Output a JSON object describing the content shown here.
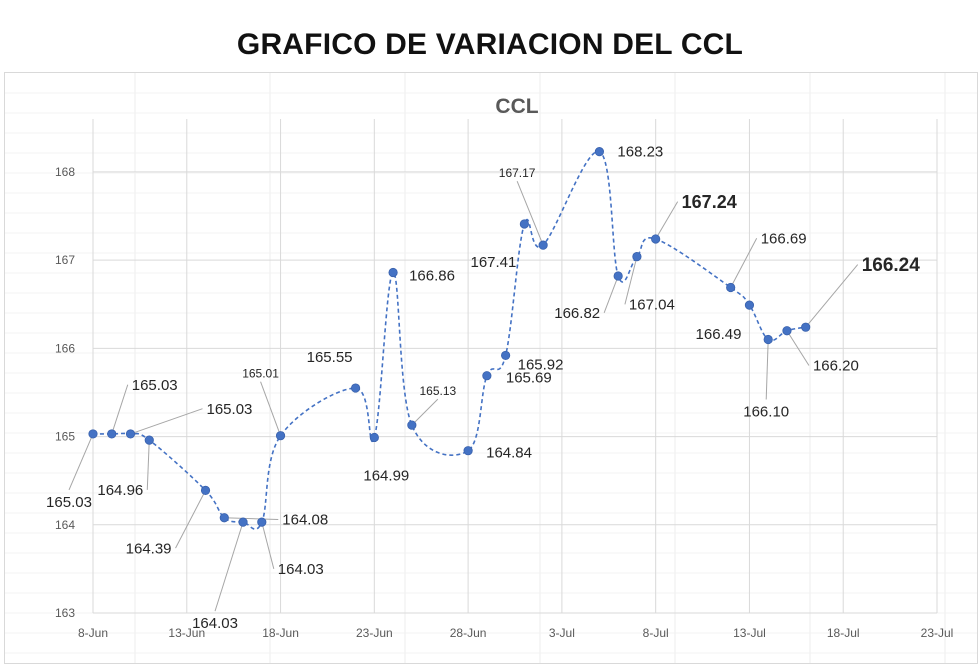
{
  "page_title": "GRAFICO DE VARIACION DEL CCL",
  "colors": {
    "series": "#4472c4",
    "grid": "#d9d9d9",
    "leader": "#a6a6a6",
    "text": "#262626",
    "title": "#595959"
  },
  "chart_data": {
    "type": "line",
    "title": "CCL",
    "xlabel": "",
    "ylabel": "",
    "line_style": "dashed-smooth",
    "marker": "circle",
    "grid": true,
    "legend": "none",
    "ylim": [
      163,
      168.6
    ],
    "yticks": [
      "163",
      "164",
      "165",
      "166",
      "167",
      "168"
    ],
    "xticks": [
      "8-Jun",
      "13-Jun",
      "18-Jun",
      "23-Jun",
      "28-Jun",
      "3-Jul",
      "8-Jul",
      "13-Jul",
      "18-Jul",
      "23-Jul"
    ],
    "xtick_dates": [
      "2020-06-08",
      "2020-06-13",
      "2020-06-18",
      "2020-06-23",
      "2020-06-28",
      "2020-07-03",
      "2020-07-08",
      "2020-07-13",
      "2020-07-18",
      "2020-07-23"
    ],
    "series": [
      {
        "points": [
          {
            "x": "2020-06-08",
            "y": 165.03,
            "label": "165.03"
          },
          {
            "x": "2020-06-09",
            "y": 165.03,
            "label": "165.03"
          },
          {
            "x": "2020-06-10",
            "y": 165.03,
            "label": "165.03"
          },
          {
            "x": "2020-06-11",
            "y": 164.96,
            "label": "164.96"
          },
          {
            "x": "2020-06-14",
            "y": 164.39,
            "label": "164.39"
          },
          {
            "x": "2020-06-15",
            "y": 164.08,
            "label": "164.08"
          },
          {
            "x": "2020-06-16",
            "y": 164.03,
            "label": "164.03"
          },
          {
            "x": "2020-06-17",
            "y": 164.03,
            "label": "164.03"
          },
          {
            "x": "2020-06-18",
            "y": 165.01,
            "label": "165.01"
          },
          {
            "x": "2020-06-22",
            "y": 165.55,
            "label": "165.55"
          },
          {
            "x": "2020-06-23",
            "y": 164.99,
            "label": "164.99"
          },
          {
            "x": "2020-06-24",
            "y": 166.86,
            "label": "166.86"
          },
          {
            "x": "2020-06-25",
            "y": 165.13,
            "label": "165.13"
          },
          {
            "x": "2020-06-28",
            "y": 164.84,
            "label": "164.84"
          },
          {
            "x": "2020-06-29",
            "y": 165.69,
            "label": "165.69"
          },
          {
            "x": "2020-06-30",
            "y": 165.92,
            "label": "165.92"
          },
          {
            "x": "2020-07-01",
            "y": 167.41,
            "label": "167.41"
          },
          {
            "x": "2020-07-02",
            "y": 167.17,
            "label": "167.17"
          },
          {
            "x": "2020-07-05",
            "y": 168.23,
            "label": "168.23"
          },
          {
            "x": "2020-07-06",
            "y": 166.82,
            "label": "166.82"
          },
          {
            "x": "2020-07-07",
            "y": 167.04,
            "label": "167.04"
          },
          {
            "x": "2020-07-08",
            "y": 167.24,
            "label": "167.24"
          },
          {
            "x": "2020-07-12",
            "y": 166.69,
            "label": "166.69"
          },
          {
            "x": "2020-07-13",
            "y": 166.49,
            "label": "166.49"
          },
          {
            "x": "2020-07-14",
            "y": 166.1,
            "label": "166.10"
          },
          {
            "x": "2020-07-15",
            "y": 166.2,
            "label": "166.20"
          },
          {
            "x": "2020-07-16",
            "y": 166.24,
            "label": "166.24"
          }
        ]
      }
    ]
  }
}
